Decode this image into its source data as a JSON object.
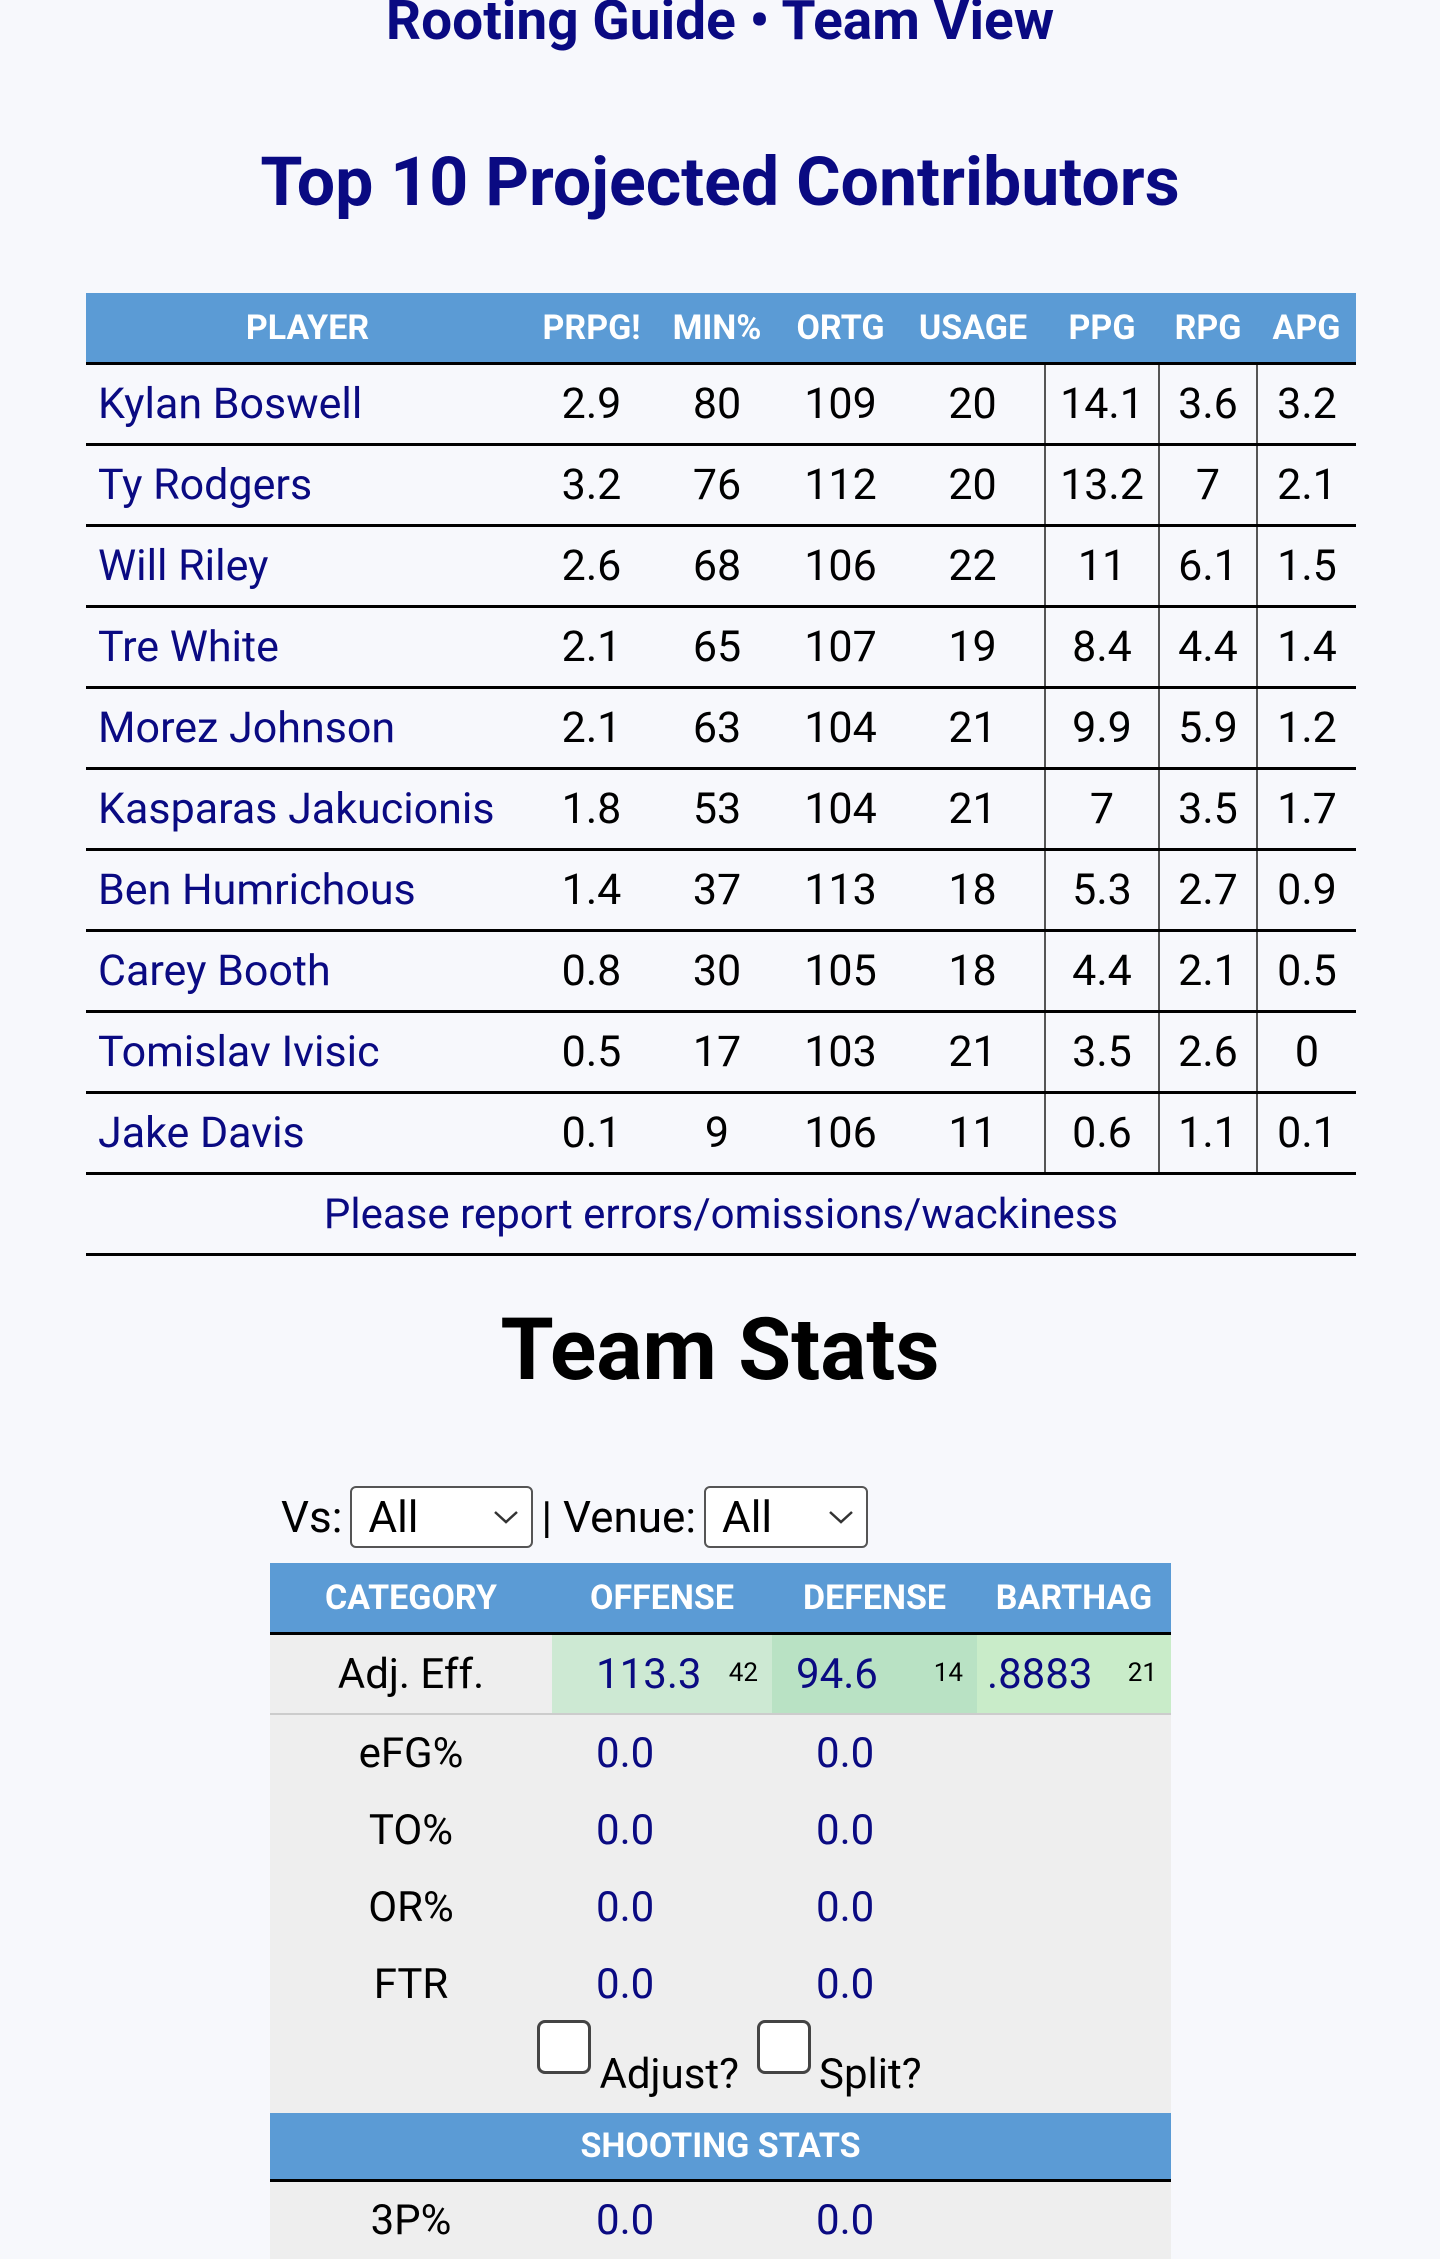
{
  "header": {
    "title": "Rooting Guide • Team View"
  },
  "contributors": {
    "title": "Top 10 Projected Contributors",
    "columns": [
      "PLAYER",
      "PRPG!",
      "MIN%",
      "ORTG",
      "USAGE",
      "PPG",
      "RPG",
      "APG"
    ],
    "rows": [
      [
        "Kylan Boswell",
        "2.9",
        "80",
        "109",
        "20",
        "14.1",
        "3.6",
        "3.2"
      ],
      [
        "Ty Rodgers",
        "3.2",
        "76",
        "112",
        "20",
        "13.2",
        "7",
        "2.1"
      ],
      [
        "Will Riley",
        "2.6",
        "68",
        "106",
        "22",
        "11",
        "6.1",
        "1.5"
      ],
      [
        "Tre White",
        "2.1",
        "65",
        "107",
        "19",
        "8.4",
        "4.4",
        "1.4"
      ],
      [
        "Morez Johnson",
        "2.1",
        "63",
        "104",
        "21",
        "9.9",
        "5.9",
        "1.2"
      ],
      [
        "Kasparas Jakucionis",
        "1.8",
        "53",
        "104",
        "21",
        "7",
        "3.5",
        "1.7"
      ],
      [
        "Ben Humrichous",
        "1.4",
        "37",
        "113",
        "18",
        "5.3",
        "2.7",
        "0.9"
      ],
      [
        "Carey Booth",
        "0.8",
        "30",
        "105",
        "18",
        "4.4",
        "2.1",
        "0.5"
      ],
      [
        "Tomislav Ivisic",
        "0.5",
        "17",
        "103",
        "21",
        "3.5",
        "2.6",
        "0"
      ],
      [
        "Jake Davis",
        "0.1",
        "9",
        "106",
        "11",
        "0.6",
        "1.1",
        "0.1"
      ]
    ],
    "footer": "Please report errors/omissions/wackiness"
  },
  "team_stats": {
    "title": "Team Stats",
    "filters": {
      "vs_label": "Vs:",
      "vs_value": "All",
      "venue_label": "| Venue:",
      "venue_value": "All"
    },
    "columns": [
      "CATEGORY",
      "OFFENSE",
      "DEFENSE",
      "BARTHAG"
    ],
    "adj_eff": {
      "label": "Adj. Eff.",
      "offense": "113.3",
      "offense_rank": "42",
      "defense": "94.6",
      "defense_rank": "14",
      "barthag": ".8883",
      "barthag_rank": "21"
    },
    "rows": [
      [
        "eFG%",
        "0.0",
        "0.0"
      ],
      [
        "TO%",
        "0.0",
        "0.0"
      ],
      [
        "OR%",
        "0.0",
        "0.0"
      ],
      [
        "FTR",
        "0.0",
        "0.0"
      ]
    ],
    "checkboxes": [
      "Adjust?",
      "Split?"
    ],
    "shooting_header": "SHOOTING STATS",
    "shooting_rows": [
      [
        "3P%",
        "0.0",
        "0.0"
      ]
    ]
  }
}
